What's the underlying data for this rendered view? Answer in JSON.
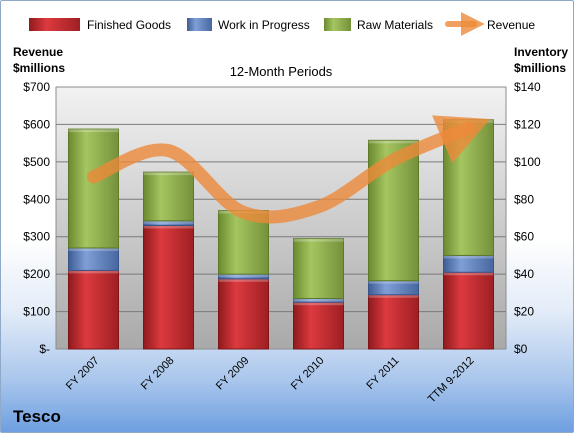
{
  "chart_data": {
    "type": "bar",
    "stacked": true,
    "company": "Tesco",
    "subtitle": "12-Month Periods",
    "left_axis_title": [
      "Revenue",
      "$millions"
    ],
    "right_axis_title": [
      "Inventory",
      "$millions"
    ],
    "categories": [
      "FY 2007",
      "FY 2008",
      "FY 2009",
      "FY 2010",
      "FY 2011",
      "TTM 9-2012"
    ],
    "left_axis": {
      "min": 0,
      "max": 700,
      "step": 100,
      "tick_labels": [
        "$-",
        "$100",
        "$200",
        "$300",
        "$400",
        "$500",
        "$600",
        "$700"
      ]
    },
    "right_axis": {
      "min": 0,
      "max": 140,
      "step": 20,
      "tick_labels": [
        "$0",
        "$20",
        "$40",
        "$60",
        "$80",
        "$100",
        "$120",
        "$140"
      ]
    },
    "grid": true,
    "legend_position": "top",
    "series": [
      {
        "name": "Finished Goods",
        "axis": "right",
        "kind": "bar",
        "color": "#c0282d",
        "values": [
          42,
          66,
          37.5,
          25,
          29,
          41
        ]
      },
      {
        "name": "Work in Progress",
        "axis": "right",
        "kind": "bar",
        "color": "#5a7fc0",
        "values": [
          12,
          2.5,
          2.5,
          2,
          7.5,
          9
        ]
      },
      {
        "name": "Raw Materials",
        "axis": "right",
        "kind": "bar",
        "color": "#8fb04b",
        "values": [
          63.5,
          26,
          34,
          32,
          75,
          72.5
        ]
      },
      {
        "name": "Revenue",
        "axis": "left",
        "kind": "line",
        "color": "#ec8a3a",
        "values": [
          460,
          530,
          365,
          380,
          505,
          590
        ]
      }
    ]
  }
}
